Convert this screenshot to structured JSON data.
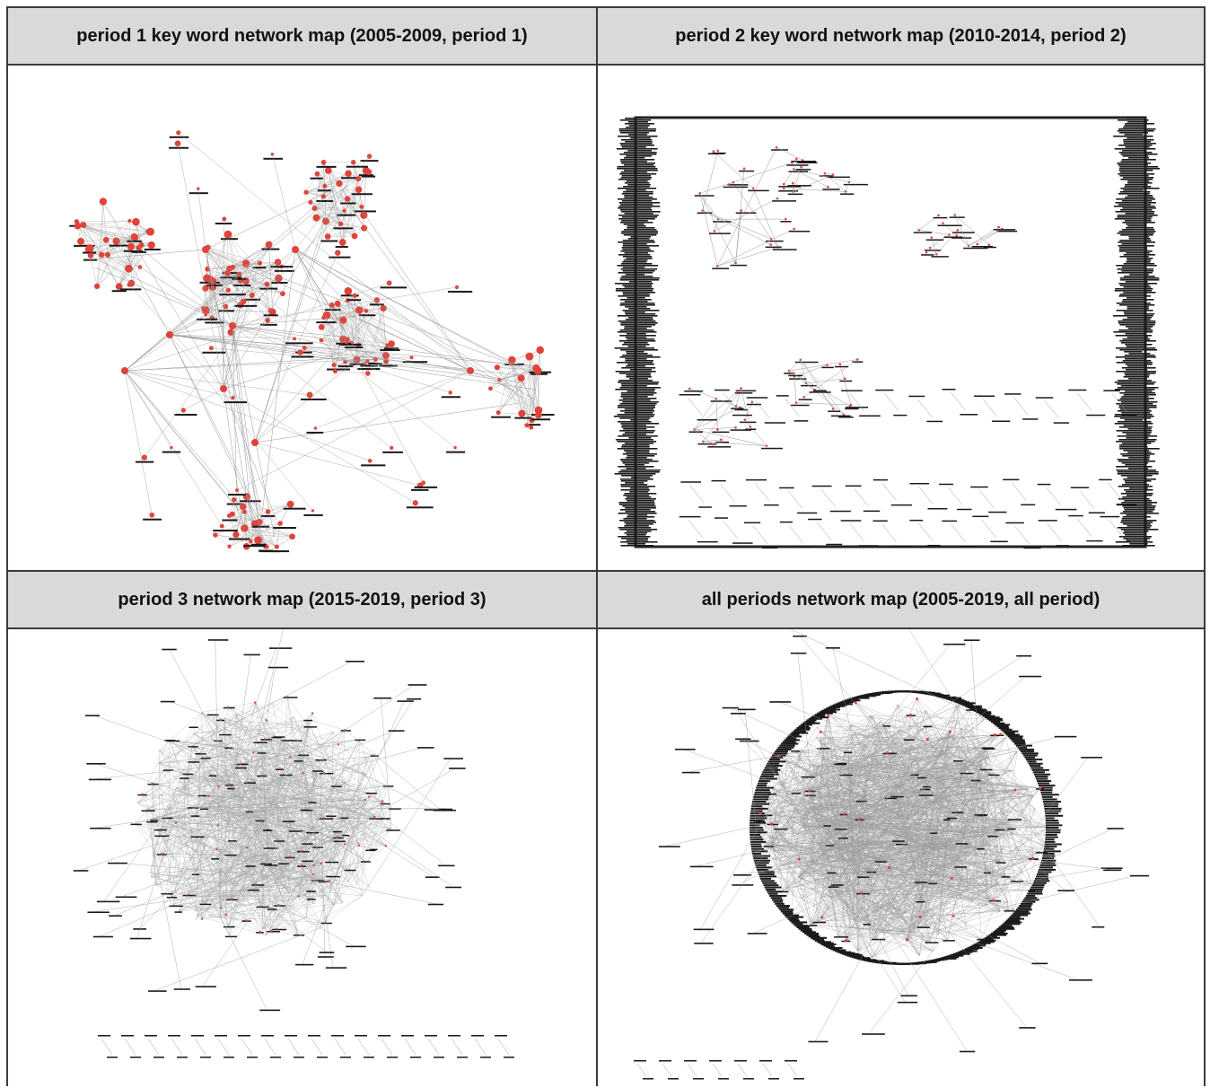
{
  "panels": [
    {
      "id": "p1",
      "title": "period 1 key word network map (2005-2009, period 1)"
    },
    {
      "id": "p2",
      "title": "period 2 key word network map (2010-2014, period 2)"
    },
    {
      "id": "p3",
      "title": "period 3 network map (2015-2019, period 3)"
    },
    {
      "id": "p4",
      "title": "all periods network map (2005-2019, all period)"
    }
  ],
  "colors": {
    "border": "#3a3a3a",
    "header_bg": "#d9d9d9",
    "edge": "#9a9a9a",
    "node": "#e0433a",
    "label": "#1a1a1a"
  }
}
